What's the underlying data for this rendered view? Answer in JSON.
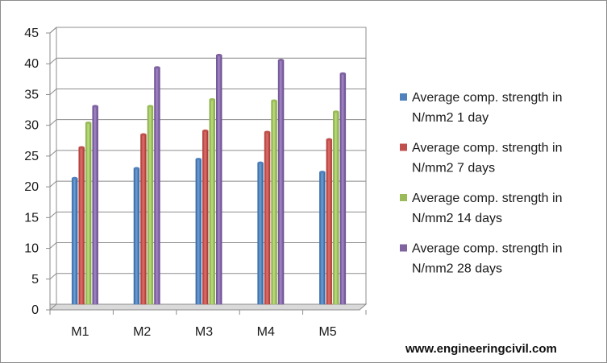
{
  "chart_data": {
    "type": "bar",
    "categories": [
      "M1",
      "M2",
      "M3",
      "M4",
      "M5"
    ],
    "series": [
      {
        "name": "Average comp. strength in N/mm2 1 day",
        "color": "#4f81bd",
        "values": [
          20.5,
          22.1,
          23.6,
          23.0,
          21.5
        ]
      },
      {
        "name": "Average comp. strength in N/mm2 7 days",
        "color": "#c0504d",
        "values": [
          25.5,
          27.6,
          28.2,
          28.0,
          26.8
        ]
      },
      {
        "name": "Average comp. strength in N/mm2 14 days",
        "color": "#9bbb59",
        "values": [
          29.5,
          32.2,
          33.3,
          33.1,
          31.3
        ]
      },
      {
        "name": "Average comp. strength in N/mm2 28 days",
        "color": "#8064a2",
        "values": [
          32.2,
          38.5,
          40.5,
          39.7,
          37.5
        ]
      }
    ],
    "ylim": [
      0,
      45
    ],
    "yticks": [
      0,
      5,
      10,
      15,
      20,
      25,
      30,
      35,
      40,
      45
    ],
    "grid": true,
    "legend_position": "right",
    "legend_lines": [
      [
        "Average comp. strength in",
        "N/mm2 1 day"
      ],
      [
        "Average comp. strength in",
        "N/mm2 7 days"
      ],
      [
        "Average comp. strength in",
        "N/mm2 14 days"
      ],
      [
        "Average comp. strength in",
        "N/mm2 28 days"
      ]
    ]
  },
  "watermark": "www.engineeringcivil.com"
}
